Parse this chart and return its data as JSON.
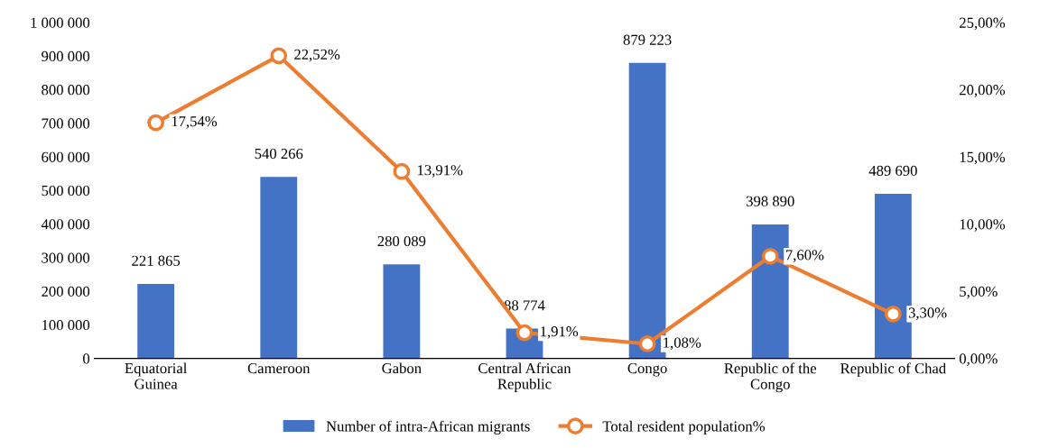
{
  "chart_data": {
    "type": "bar",
    "categories": [
      "Equatorial\nGuinea",
      "Cameroon",
      "Gabon",
      "Central African\nRepublic",
      "Congo",
      "Republic of the\nCongo",
      "Republic of Chad"
    ],
    "series": [
      {
        "name": "Number of intra-African migrants",
        "color": "#4472c4",
        "values": [
          221865,
          540266,
          280089,
          88774,
          879223,
          398890,
          489690
        ],
        "value_labels": [
          "221 865",
          "540 266",
          "280 089",
          "88 774",
          "879 223",
          "398 890",
          "489 690"
        ]
      },
      {
        "name": "Total resident population%",
        "type": "line",
        "axis": "y2",
        "color": "#ed7d31",
        "marker": "circle",
        "values": [
          17.54,
          22.52,
          13.91,
          1.91,
          1.08,
          7.6,
          3.3
        ],
        "value_labels": [
          "17,54%",
          "22,52%",
          "13,91%",
          "1,91%",
          "1,08%",
          "7,60%",
          "3,30%"
        ]
      }
    ],
    "ylim": [
      0,
      1000000
    ],
    "yticks": [
      0,
      {
        "value": 100000,
        "label": "100 000"
      },
      {
        "value": 200000,
        "label": "200 000"
      },
      {
        "value": 300000,
        "label": "300 000"
      },
      {
        "value": 400000,
        "label": "400 000"
      },
      {
        "value": 500000,
        "label": "500 000"
      },
      {
        "value": 600000,
        "label": "600 000"
      },
      {
        "value": 700000,
        "label": "700 000"
      },
      {
        "value": 800000,
        "label": "800 000"
      },
      {
        "value": 900000,
        "label": "900 000"
      },
      {
        "value": 1000000,
        "label": "1 000 000"
      }
    ],
    "y2lim": [
      0,
      25
    ],
    "y2ticks": [
      {
        "value": 0,
        "label": "0,00%"
      },
      {
        "value": 5,
        "label": "5,00%"
      },
      {
        "value": 10,
        "label": "10,00%"
      },
      {
        "value": 15,
        "label": "15,00%"
      },
      {
        "value": 20,
        "label": "20,00%"
      },
      {
        "value": 25,
        "label": "25,00%"
      }
    ],
    "legend": "bottom",
    "grid": false
  }
}
